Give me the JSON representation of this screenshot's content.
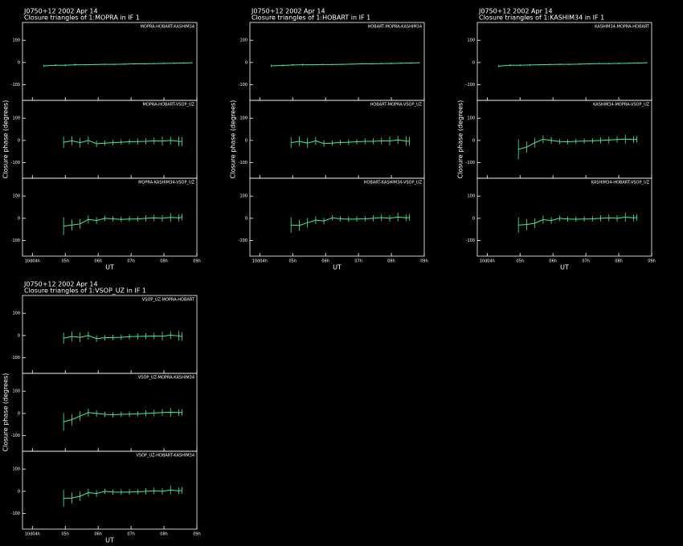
{
  "chart_data": [
    {
      "type": "line",
      "title": "J0750+12  2002 Apr 14",
      "subtitle": "Closure triangles of 1:MOPRA in IF 1",
      "y_label": "Closure phase  (degrees)",
      "x_label": "UT",
      "color": "#40eea0",
      "xlim": [
        3.7,
        9.0
      ],
      "xticks": [
        {
          "value": 4,
          "label": "10d04h"
        },
        {
          "value": 5,
          "label": "05h"
        },
        {
          "value": 6,
          "label": "06h"
        },
        {
          "value": 7,
          "label": "07h"
        },
        {
          "value": 8,
          "label": "08h"
        },
        {
          "value": 9,
          "label": "09h"
        }
      ],
      "ylim": [
        -170,
        180
      ],
      "yticks": [
        -100,
        0,
        100
      ],
      "panels": [
        {
          "label": "MOPRA-HOBART-KASHIM34",
          "x": [
            4.35,
            4.7,
            5.0,
            5.3,
            5.6,
            5.9,
            6.2,
            6.5,
            6.8,
            7.1,
            7.4,
            7.7,
            8.0,
            8.3,
            8.6,
            8.85
          ],
          "values": [
            -15,
            -12,
            -12,
            -10,
            -10,
            -9,
            -8,
            -8,
            -7,
            -6,
            -6,
            -5,
            -4,
            -3,
            -2,
            -1
          ],
          "errors": [
            5,
            4,
            4,
            4,
            3,
            3,
            3,
            3,
            3,
            3,
            3,
            3,
            3,
            3,
            3,
            3
          ]
        },
        {
          "label": "MOPRA-HOBART-VSOP_UZ",
          "x": [
            4.95,
            5.2,
            5.45,
            5.7,
            5.95,
            6.2,
            6.45,
            6.7,
            6.95,
            7.2,
            7.45,
            7.7,
            7.95,
            8.2,
            8.45,
            8.55
          ],
          "values": [
            -8,
            -2,
            -10,
            0,
            -15,
            -12,
            -10,
            -8,
            -6,
            -5,
            -4,
            -2,
            -3,
            0,
            -4,
            -5
          ],
          "errors": [
            25,
            20,
            22,
            18,
            15,
            12,
            12,
            12,
            12,
            14,
            14,
            15,
            20,
            18,
            22,
            20
          ]
        },
        {
          "label": "MOPRA-KASHIM34-VSOP_UZ",
          "x": [
            4.95,
            5.2,
            5.45,
            5.7,
            5.95,
            6.2,
            6.45,
            6.7,
            6.95,
            7.2,
            7.45,
            7.7,
            7.95,
            8.2,
            8.45,
            8.55
          ],
          "values": [
            -35,
            -30,
            -25,
            -5,
            -10,
            0,
            -2,
            -5,
            -3,
            -3,
            0,
            2,
            0,
            4,
            2,
            5
          ],
          "errors": [
            40,
            25,
            22,
            18,
            15,
            12,
            12,
            12,
            12,
            12,
            14,
            15,
            15,
            20,
            15,
            15
          ]
        }
      ]
    },
    {
      "type": "line",
      "title": "J0750+12  2002 Apr 14",
      "subtitle": "Closure triangles of 1:HOBART in IF 1",
      "y_label": "Closure phase  (degrees)",
      "x_label": "UT",
      "color": "#40eea0",
      "xlim": [
        3.7,
        9.0
      ],
      "xticks": [
        {
          "value": 4,
          "label": "10d04h"
        },
        {
          "value": 5,
          "label": "05h"
        },
        {
          "value": 6,
          "label": "06h"
        },
        {
          "value": 7,
          "label": "07h"
        },
        {
          "value": 8,
          "label": "08h"
        },
        {
          "value": 9,
          "label": "09h"
        }
      ],
      "ylim": [
        -170,
        180
      ],
      "yticks": [
        -100,
        0,
        100
      ],
      "panels": [
        {
          "label": "HOBART-MOPRA-KASHIM34",
          "x": [
            4.35,
            4.7,
            5.0,
            5.3,
            5.6,
            5.9,
            6.2,
            6.5,
            6.8,
            7.1,
            7.4,
            7.7,
            8.0,
            8.3,
            8.6,
            8.85
          ],
          "values": [
            -15,
            -13,
            -11,
            -10,
            -10,
            -9,
            -9,
            -8,
            -7,
            -6,
            -6,
            -5,
            -4,
            -3,
            -2,
            -1
          ],
          "errors": [
            5,
            4,
            4,
            4,
            3,
            3,
            3,
            3,
            3,
            3,
            3,
            3,
            3,
            3,
            3,
            3
          ]
        },
        {
          "label": "HOBART-MOPRA-VSOP_UZ",
          "x": [
            4.95,
            5.2,
            5.45,
            5.7,
            5.95,
            6.2,
            6.45,
            6.7,
            6.95,
            7.2,
            7.45,
            7.7,
            7.95,
            8.2,
            8.45,
            8.55
          ],
          "values": [
            -10,
            -4,
            -12,
            -2,
            -14,
            -12,
            -9,
            -8,
            -6,
            -4,
            -4,
            -2,
            -2,
            2,
            -3,
            -4
          ],
          "errors": [
            25,
            22,
            22,
            18,
            15,
            12,
            12,
            12,
            12,
            14,
            14,
            15,
            20,
            18,
            22,
            20
          ]
        },
        {
          "label": "HOBART-KASHIM34-VSOP_UZ",
          "x": [
            4.95,
            5.2,
            5.45,
            5.7,
            5.95,
            6.2,
            6.45,
            6.7,
            6.95,
            7.2,
            7.45,
            7.7,
            7.95,
            8.2,
            8.45,
            8.55
          ],
          "values": [
            -30,
            -32,
            -20,
            -8,
            -12,
            2,
            -2,
            -4,
            -3,
            -2,
            0,
            3,
            0,
            6,
            2,
            4
          ],
          "errors": [
            35,
            25,
            22,
            18,
            15,
            12,
            12,
            12,
            12,
            12,
            14,
            15,
            15,
            20,
            15,
            15
          ]
        }
      ]
    },
    {
      "type": "line",
      "title": "J0750+12  2002 Apr 14",
      "subtitle": "Closure triangles of 1:KASHIM34 in IF 1",
      "y_label": "Closure phase  (degrees)",
      "x_label": "UT",
      "color": "#40eea0",
      "xlim": [
        3.7,
        9.0
      ],
      "xticks": [
        {
          "value": 4,
          "label": "10d04h"
        },
        {
          "value": 5,
          "label": "05h"
        },
        {
          "value": 6,
          "label": "06h"
        },
        {
          "value": 7,
          "label": "07h"
        },
        {
          "value": 8,
          "label": "08h"
        },
        {
          "value": 9,
          "label": "09h"
        }
      ],
      "ylim": [
        -170,
        180
      ],
      "yticks": [
        -100,
        0,
        100
      ],
      "panels": [
        {
          "label": "KASHIM34-MOPRA-HOBART",
          "x": [
            4.35,
            4.7,
            5.0,
            5.3,
            5.6,
            5.9,
            6.2,
            6.5,
            6.8,
            7.1,
            7.4,
            7.7,
            8.0,
            8.3,
            8.6,
            8.85
          ],
          "values": [
            -16,
            -12,
            -12,
            -11,
            -10,
            -9,
            -8,
            -8,
            -7,
            -6,
            -5,
            -5,
            -4,
            -3,
            -2,
            -1
          ],
          "errors": [
            5,
            4,
            4,
            4,
            3,
            3,
            3,
            3,
            3,
            3,
            3,
            3,
            3,
            3,
            3,
            3
          ]
        },
        {
          "label": "KASHIM34-MOPRA-VSOP_UZ",
          "x": [
            4.95,
            5.2,
            5.45,
            5.7,
            5.95,
            6.2,
            6.45,
            6.7,
            6.95,
            7.2,
            7.45,
            7.7,
            7.95,
            8.2,
            8.45,
            8.55
          ],
          "values": [
            -40,
            -30,
            -10,
            5,
            0,
            -5,
            -6,
            -4,
            -3,
            -2,
            0,
            2,
            4,
            6,
            4,
            5
          ],
          "errors": [
            45,
            25,
            22,
            18,
            15,
            12,
            12,
            12,
            12,
            12,
            14,
            15,
            15,
            20,
            15,
            15
          ]
        },
        {
          "label": "KASHIM34-HOBART-VSOP_UZ",
          "x": [
            4.95,
            5.2,
            5.45,
            5.7,
            5.95,
            6.2,
            6.45,
            6.7,
            6.95,
            7.2,
            7.45,
            7.7,
            7.95,
            8.2,
            8.45,
            8.55
          ],
          "values": [
            -30,
            -28,
            -22,
            -6,
            -10,
            0,
            -3,
            -4,
            -3,
            -2,
            0,
            2,
            0,
            5,
            2,
            4
          ],
          "errors": [
            35,
            25,
            22,
            18,
            15,
            12,
            12,
            12,
            12,
            12,
            14,
            15,
            15,
            20,
            15,
            15
          ]
        }
      ]
    },
    {
      "type": "line",
      "title": "J0750+12  2002 Apr 14",
      "subtitle": "Closure triangles of 1:VSOP_UZ in IF 1",
      "y_label": "Closure phase  (degrees)",
      "x_label": "UT",
      "color": "#40eea0",
      "xlim": [
        3.7,
        9.0
      ],
      "xticks": [
        {
          "value": 4,
          "label": "10d04h"
        },
        {
          "value": 5,
          "label": "05h"
        },
        {
          "value": 6,
          "label": "06h"
        },
        {
          "value": 7,
          "label": "07h"
        },
        {
          "value": 8,
          "label": "08h"
        },
        {
          "value": 9,
          "label": "09h"
        }
      ],
      "ylim": [
        -170,
        180
      ],
      "yticks": [
        -100,
        0,
        100
      ],
      "panels": [
        {
          "label": "VSOP_UZ-MOPRA-HOBART",
          "x": [
            4.95,
            5.2,
            5.45,
            5.7,
            5.95,
            6.2,
            6.45,
            6.7,
            6.95,
            7.2,
            7.45,
            7.7,
            7.95,
            8.2,
            8.45,
            8.55
          ],
          "values": [
            -12,
            -4,
            -8,
            0,
            -14,
            -10,
            -9,
            -8,
            -5,
            -4,
            -3,
            -2,
            -3,
            2,
            -2,
            -4
          ],
          "errors": [
            25,
            22,
            22,
            18,
            15,
            12,
            12,
            12,
            12,
            14,
            14,
            15,
            20,
            18,
            22,
            20
          ]
        },
        {
          "label": "VSOP_UZ-MOPRA-KASHIM34",
          "x": [
            4.95,
            5.2,
            5.45,
            5.7,
            5.95,
            6.2,
            6.45,
            6.7,
            6.95,
            7.2,
            7.45,
            7.7,
            7.95,
            8.2,
            8.45,
            8.55
          ],
          "values": [
            -38,
            -28,
            -12,
            4,
            0,
            -4,
            -6,
            -4,
            -3,
            -2,
            0,
            2,
            4,
            5,
            4,
            5
          ],
          "errors": [
            40,
            25,
            22,
            18,
            15,
            12,
            12,
            12,
            12,
            12,
            14,
            15,
            15,
            20,
            15,
            15
          ]
        },
        {
          "label": "VSOP_UZ-HOBART-KASHIM34",
          "x": [
            4.95,
            5.2,
            5.45,
            5.7,
            5.95,
            6.2,
            6.45,
            6.7,
            6.95,
            7.2,
            7.45,
            7.7,
            7.95,
            8.2,
            8.45,
            8.55
          ],
          "values": [
            -32,
            -30,
            -22,
            -6,
            -10,
            0,
            -3,
            -4,
            -3,
            -2,
            0,
            2,
            0,
            6,
            2,
            4
          ],
          "errors": [
            38,
            25,
            22,
            18,
            15,
            12,
            12,
            12,
            12,
            12,
            14,
            15,
            15,
            20,
            15,
            15
          ]
        }
      ]
    }
  ]
}
